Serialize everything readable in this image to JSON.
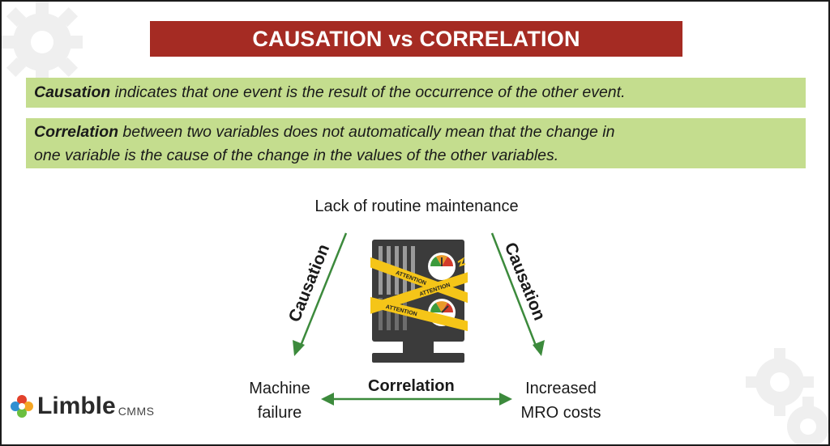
{
  "title": "CAUSATION vs CORRELATION",
  "definitions": [
    {
      "term": "Causation",
      "text": " indicates that one event is the result of the occurrence of the other event."
    },
    {
      "term": "Correlation",
      "text_line1": " between two variables does not automatically mean that the change in",
      "text_line2": "one variable is the cause of the change in the values of the other variables."
    }
  ],
  "diagram": {
    "top_node": "Lack of routine maintenance",
    "left_node": [
      "Machine",
      "failure"
    ],
    "right_node": [
      "Increased",
      "MRO costs"
    ],
    "left_relation": "Causation",
    "right_relation": "Causation",
    "bottom_relation": "Correlation",
    "tape_text": "ATTENTION"
  },
  "logo": {
    "name": "Limble",
    "suffix": "CMMS"
  },
  "colors": {
    "banner": "#a52b23",
    "definition_bg": "#c4dd8e",
    "arrow": "#3c8a3c",
    "machine": "#3b3b3b",
    "tape": "#f5c518"
  }
}
